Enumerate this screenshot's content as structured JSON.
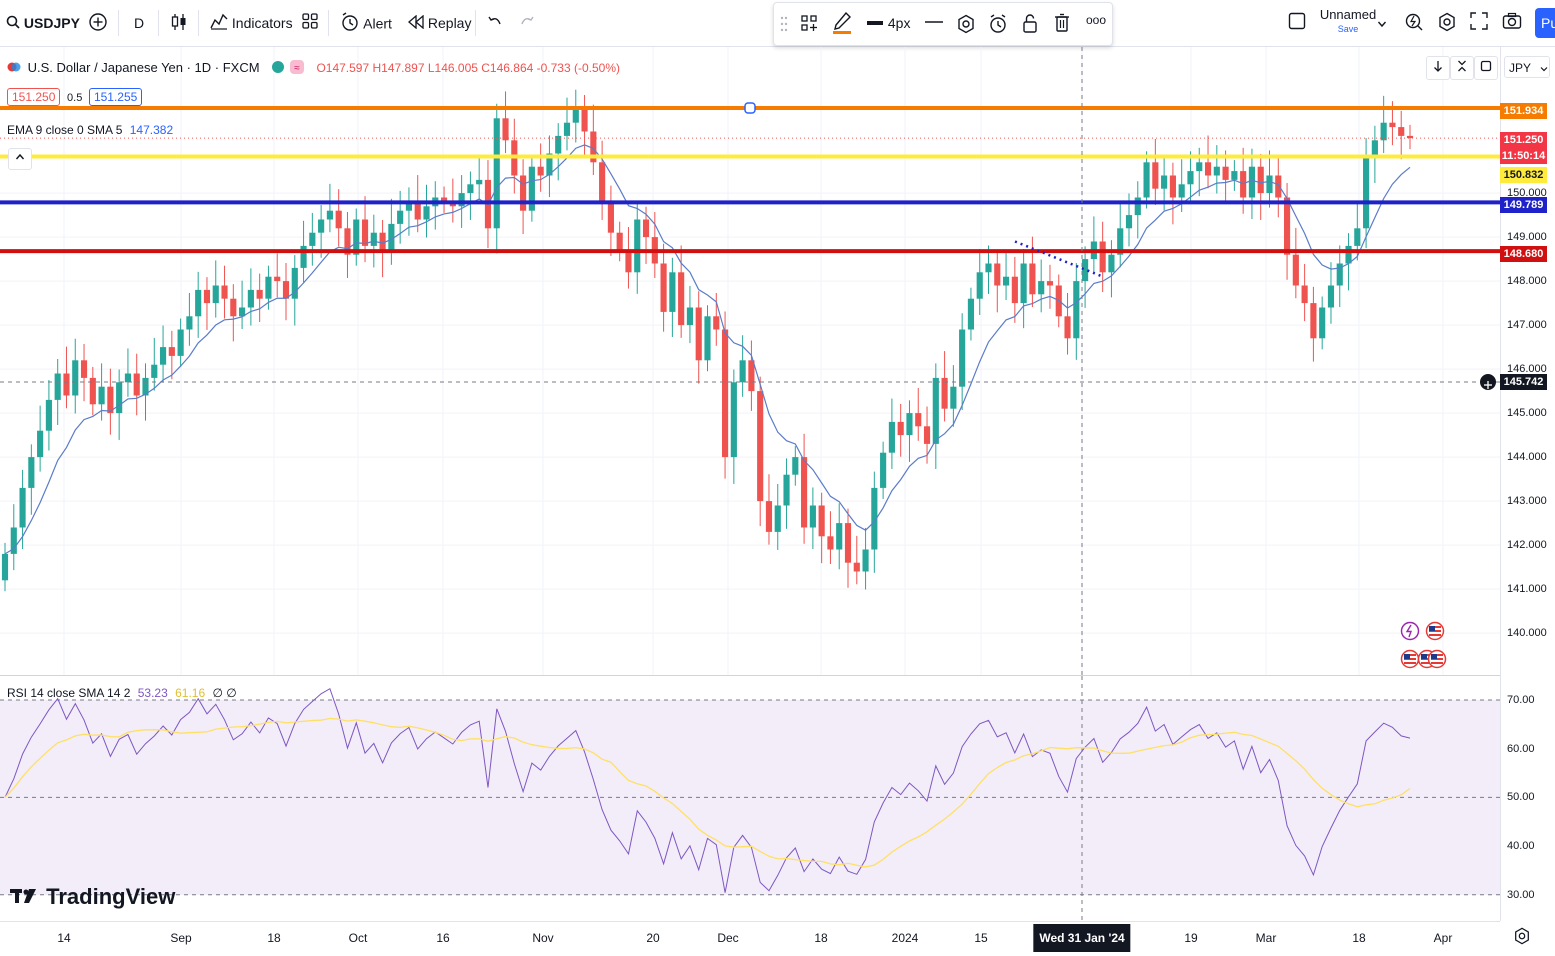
{
  "toolbar": {
    "symbol": "USDJPY",
    "interval": "D",
    "indicators_label": "Indicators",
    "alert_label": "Alert",
    "replay_label": "Replay",
    "layout_name": "Unnamed",
    "save_label": "Save",
    "publish_label": "Pu"
  },
  "drawing_toolbar": {
    "width_label": "4px",
    "more_label": "ooo"
  },
  "legend": {
    "title": "U.S. Dollar / Japanese Yen · 1D · FXCM",
    "ohlc": "O147.597  H147.897  L146.005  C146.864  -0.733 (-0.50%)",
    "bid": "151.250",
    "spread": "0.5",
    "ask": "151.255",
    "ema_label": "EMA 9 close 0 SMA 5",
    "ema_value": "147.382",
    "rsi_label": "RSI 14 close SMA 14 2",
    "rsi_value": "53.23",
    "rsi_sma_value": "61.16",
    "rsi_extra": "∅ ∅"
  },
  "currency_button": "JPY",
  "price_axis": {
    "labels": [
      "150.000",
      "149.000",
      "148.000",
      "147.000",
      "146.000",
      "145.000",
      "144.000",
      "143.000",
      "142.000",
      "141.000",
      "140.000"
    ],
    "rsi_labels": [
      "70.00",
      "60.00",
      "50.00",
      "40.00",
      "30.00"
    ]
  },
  "price_tags": [
    {
      "label": "151.934",
      "color": "#f57c00",
      "text_color": "#ffffff"
    },
    {
      "label": "151.250",
      "color": "#f23645",
      "text_color": "#ffffff"
    },
    {
      "label": "11:50:14",
      "color": "#f23645",
      "text_color": "#ffffff"
    },
    {
      "label": "150.832",
      "color": "#ffeb3b",
      "text_color": "#131722"
    },
    {
      "label": "149.789",
      "color": "#1e22c8",
      "text_color": "#ffffff"
    },
    {
      "label": "148.680",
      "color": "#d01010",
      "text_color": "#ffffff"
    },
    {
      "label": "145.742",
      "color": "#131722",
      "text_color": "#ffffff"
    }
  ],
  "time_axis": {
    "labels": [
      "14",
      "Sep",
      "18",
      "Oct",
      "16",
      "Nov",
      "20",
      "Dec",
      "18",
      "2024",
      "15",
      "19",
      "Mar",
      "18",
      "Apr"
    ],
    "crosshair_label": "Wed 31 Jan '24"
  },
  "horizontal_lines": [
    {
      "price": 151.934,
      "color": "#f57c00"
    },
    {
      "price": 150.832,
      "color": "#ffeb3b"
    },
    {
      "price": 149.789,
      "color": "#1e22c8"
    },
    {
      "price": 148.68,
      "color": "#d01010"
    }
  ],
  "brand": "TradingView",
  "colors": {
    "up": "#26a69a",
    "down": "#ef5350",
    "ema": "#5b7cc8",
    "rsi": "#7e57c2",
    "rsi_sma": "#ffe066"
  }
}
